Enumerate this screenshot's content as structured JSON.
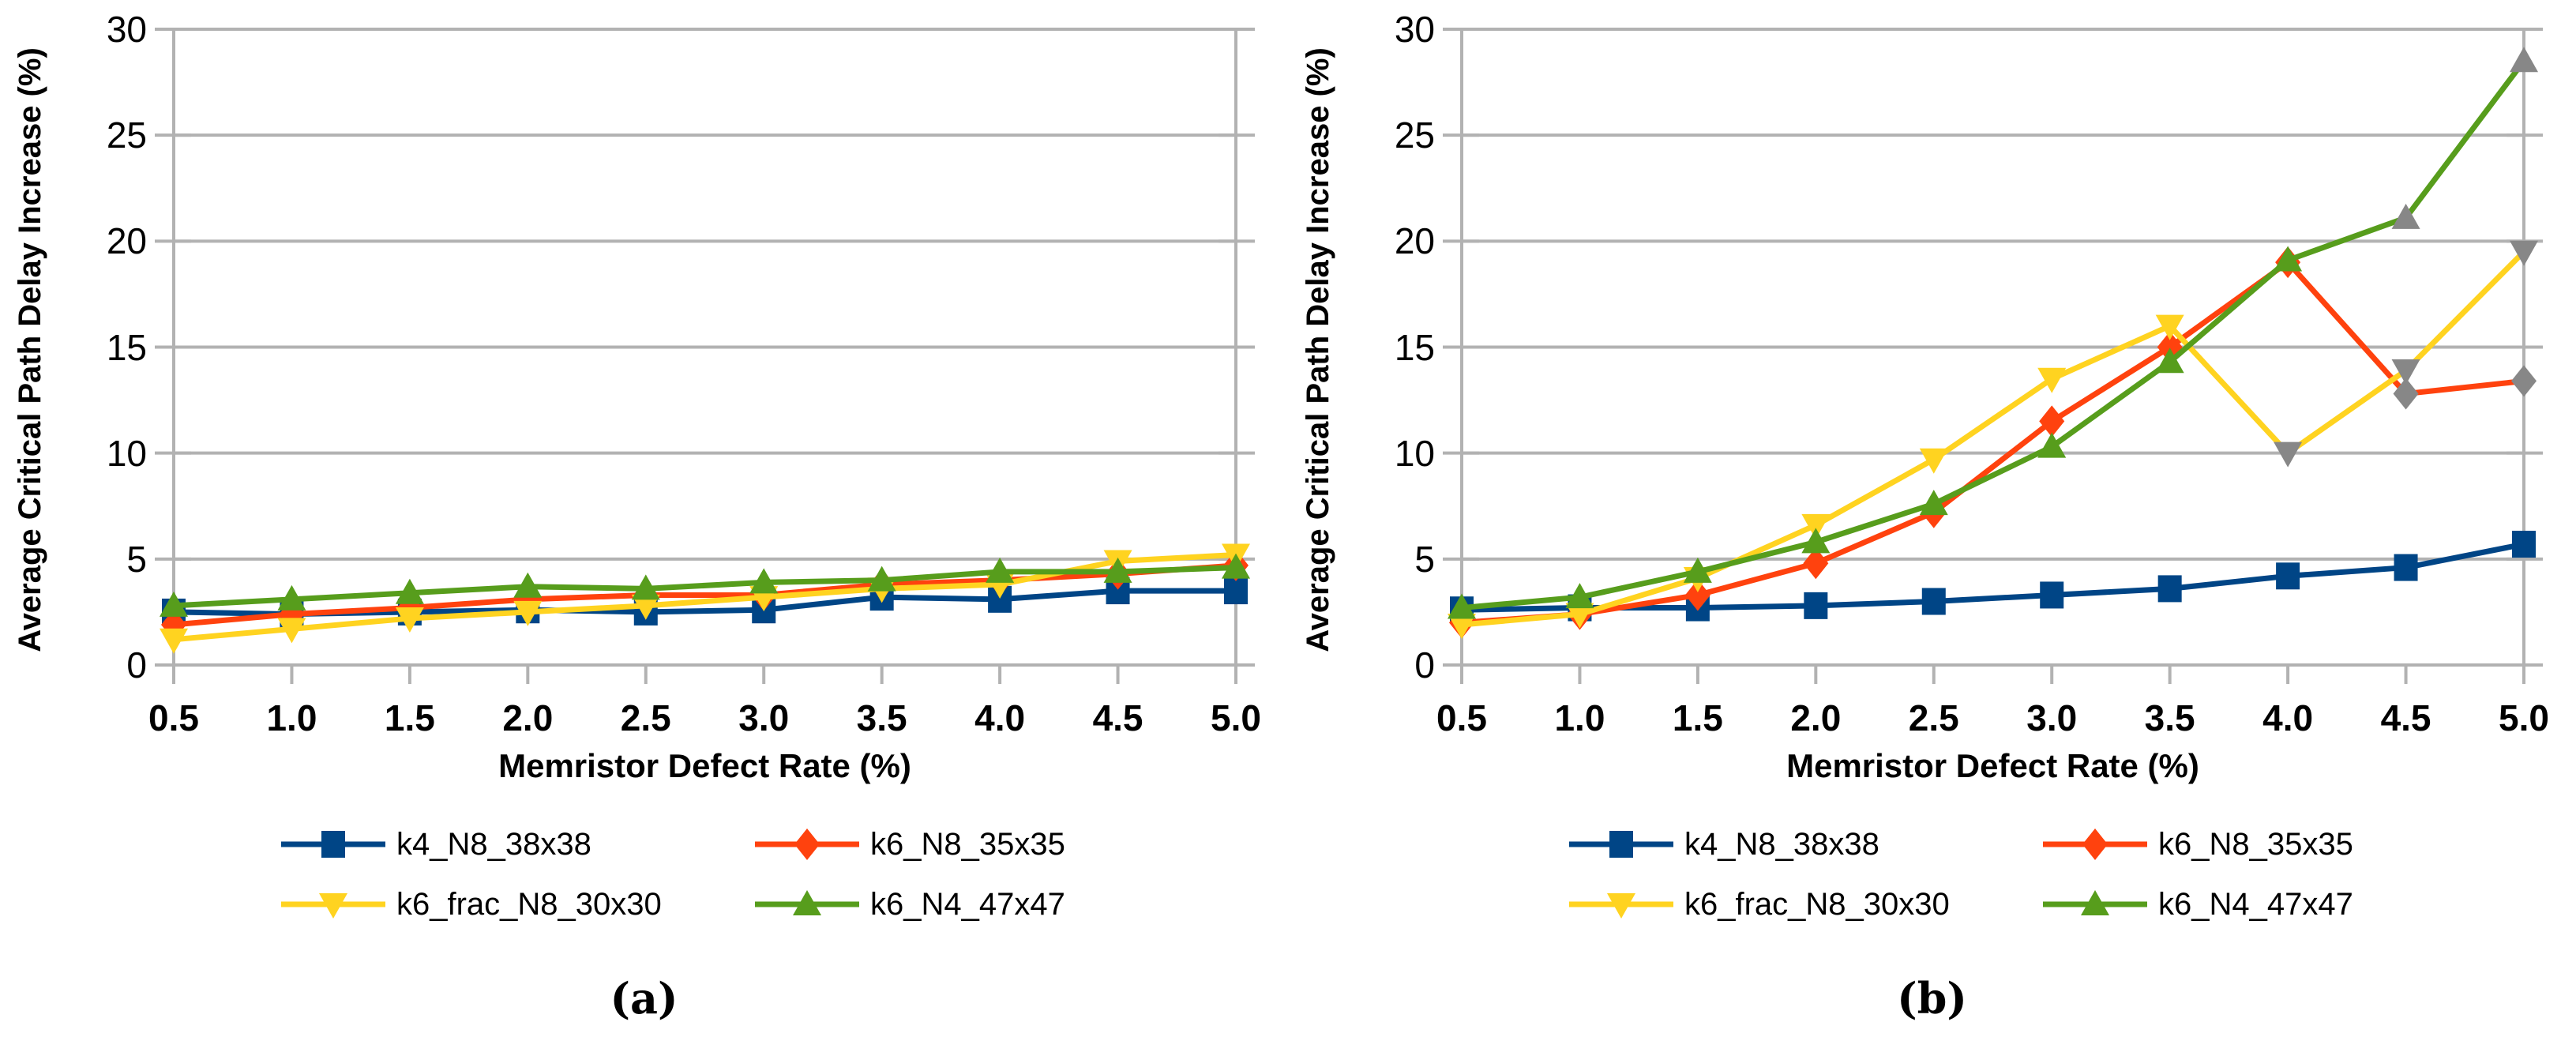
{
  "page": {
    "background": "#ffffff"
  },
  "colors": {
    "grid": "#b2b2b2",
    "text": "#000000",
    "gray_marker": "#878787",
    "series_blue": "#004586",
    "series_red": "#ff420e",
    "series_yellow": "#ffd320",
    "series_green": "#579d1c"
  },
  "axes": {
    "x_tick_labels": [
      "0.5",
      "1.0",
      "1.5",
      "2.0",
      "2.5",
      "3.0",
      "3.5",
      "4.0",
      "4.5",
      "5.0"
    ],
    "y_tick_labels": [
      "0",
      "5",
      "10",
      "15",
      "20",
      "25",
      "30"
    ]
  },
  "chart_data": [
    {
      "type": "line",
      "panel": "a",
      "caption": "(a)",
      "title": "",
      "xlabel": "Memristor Defect Rate (%)",
      "ylabel": "Average Critical Path Delay Increase (%)",
      "x": [
        0.5,
        1.0,
        1.5,
        2.0,
        2.5,
        3.0,
        3.5,
        4.0,
        4.5,
        5.0
      ],
      "xlim": [
        0.5,
        5.0
      ],
      "ylim": [
        0,
        30
      ],
      "y_ticks": [
        0,
        5,
        10,
        15,
        20,
        25,
        30
      ],
      "grid": "horizontal",
      "legend_position": "bottom",
      "series": [
        {
          "name": "k4_N8_38x38",
          "color": "#004586",
          "marker": "square",
          "values": [
            2.5,
            2.4,
            2.5,
            2.6,
            2.5,
            2.6,
            3.2,
            3.1,
            3.5,
            3.5
          ]
        },
        {
          "name": "k6_N8_35x35",
          "color": "#ff420e",
          "marker": "diamond",
          "values": [
            1.9,
            2.4,
            2.7,
            3.1,
            3.3,
            3.3,
            3.8,
            4.0,
            4.3,
            4.7
          ]
        },
        {
          "name": "k6_frac_N8_30x30",
          "color": "#ffd320",
          "marker": "triangle-down",
          "values": [
            1.2,
            1.7,
            2.2,
            2.5,
            2.8,
            3.2,
            3.6,
            3.8,
            4.9,
            5.2
          ]
        },
        {
          "name": "k6_N4_47x47",
          "color": "#579d1c",
          "marker": "triangle-up",
          "values": [
            2.8,
            3.1,
            3.4,
            3.7,
            3.6,
            3.9,
            4.0,
            4.4,
            4.4,
            4.6
          ]
        }
      ]
    },
    {
      "type": "line",
      "panel": "b",
      "caption": "(b)",
      "title": "",
      "xlabel": "Memristor Defect Rate (%)",
      "ylabel": "Average Critical Path Delay Increase (%)",
      "x": [
        0.5,
        1.0,
        1.5,
        2.0,
        2.5,
        3.0,
        3.5,
        4.0,
        4.5,
        5.0
      ],
      "xlim": [
        0.5,
        5.0
      ],
      "ylim": [
        0,
        30
      ],
      "y_ticks": [
        0,
        5,
        10,
        15,
        20,
        25,
        30
      ],
      "grid": "horizontal",
      "legend_position": "bottom",
      "series": [
        {
          "name": "k4_N8_38x38",
          "color": "#004586",
          "marker": "square",
          "values": [
            2.6,
            2.7,
            2.7,
            2.8,
            3.0,
            3.3,
            3.6,
            4.2,
            4.6,
            5.7
          ]
        },
        {
          "name": "k6_N8_35x35",
          "color": "#ff420e",
          "marker": "diamond",
          "values": [
            2.0,
            2.4,
            3.3,
            4.8,
            7.2,
            11.5,
            15.0,
            19.0,
            12.8,
            13.4
          ],
          "gray_marker_indices": [
            8,
            9
          ]
        },
        {
          "name": "k6_frac_N8_30x30",
          "color": "#ffd320",
          "marker": "triangle-down",
          "values": [
            1.9,
            2.4,
            4.1,
            6.6,
            9.7,
            13.5,
            16.0,
            10.0,
            13.9,
            19.5
          ],
          "gray_marker_indices": [
            7,
            8,
            9
          ]
        },
        {
          "name": "k6_N4_47x47",
          "color": "#579d1c",
          "marker": "triangle-up",
          "values": [
            2.7,
            3.2,
            4.4,
            5.8,
            7.6,
            10.3,
            14.3,
            19.1,
            21.1,
            28.5
          ],
          "gray_marker_indices": [
            8,
            9
          ]
        }
      ]
    }
  ]
}
